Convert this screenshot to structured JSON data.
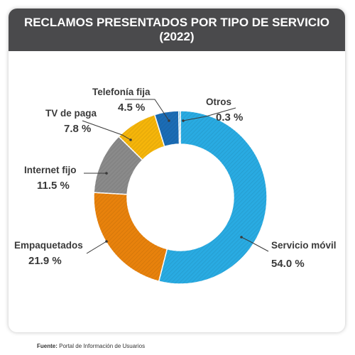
{
  "header": {
    "title_line1": "RECLAMOS PRESENTADOS POR TIPO DE SERVICIO",
    "title_line2": "(2022)"
  },
  "source": {
    "label": "Fuente:",
    "text": "Portal de Información de Usuarios"
  },
  "chart_data": {
    "type": "pie",
    "variant": "donut",
    "title": "RECLAMOS PRESENTADOS POR TIPO DE SERVICIO (2022)",
    "unit": "%",
    "slices": [
      {
        "name": "Servicio móvil",
        "value": 54.0,
        "label": "54.0 %",
        "color": "#29abe2"
      },
      {
        "name": "Empaquetados",
        "value": 21.9,
        "label": "21.9 %",
        "color": "#e8820c"
      },
      {
        "name": "Internet fijo",
        "value": 11.5,
        "label": "11.5 %",
        "color": "#8a8a8a"
      },
      {
        "name": "TV de paga",
        "value": 7.8,
        "label": "7.8 %",
        "color": "#f5b50a"
      },
      {
        "name": "Telefonía fija",
        "value": 4.5,
        "label": "4.5 %",
        "color": "#1b6cb5"
      },
      {
        "name": "Otros",
        "value": 0.3,
        "label": "0.3 %",
        "color": "#29abe2"
      }
    ],
    "legend": "none"
  }
}
